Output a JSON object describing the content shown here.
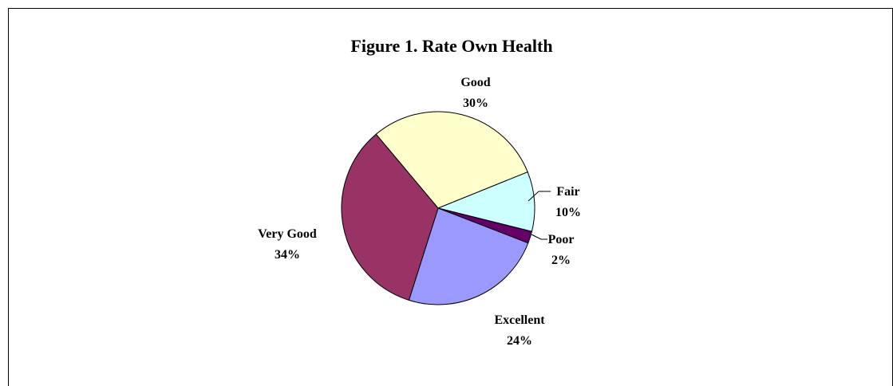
{
  "chart_data": {
    "type": "pie",
    "title": "Figure 1. Rate Own Health",
    "categories": [
      "Good",
      "Fair",
      "Poor",
      "Excellent",
      "Very Good"
    ],
    "values": [
      30,
      10,
      2,
      24,
      34
    ],
    "value_labels": [
      "30%",
      "10%",
      "2%",
      "24%",
      "34%"
    ],
    "colors": [
      "#ffffcc",
      "#ccffff",
      "#660066",
      "#9999ff",
      "#993366"
    ]
  }
}
